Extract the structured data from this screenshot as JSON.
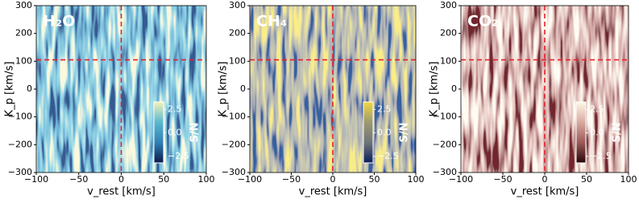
{
  "chart_data": [
    {
      "type": "heatmap",
      "title": "H₂O",
      "xlabel": "v_rest [km/s]",
      "ylabel": "K_p [km/s]",
      "xlim": [
        -100,
        100
      ],
      "xticks": [
        {
          "value": -100,
          "label": "−100"
        },
        {
          "value": -50,
          "label": "−50"
        },
        0,
        50,
        100
      ],
      "ylim": [
        -300,
        300
      ],
      "yticks": [
        {
          "value": -300,
          "label": "−300"
        },
        {
          "value": -200,
          "label": "−200"
        },
        {
          "value": -100,
          "label": "−100"
        },
        0,
        100,
        200,
        300
      ],
      "markers": {
        "x": 0,
        "y": 105,
        "color": "#e8202a"
      },
      "colormap": [
        "#0a1a4a",
        "#2f7fb5",
        "#5ab8cf",
        "#f4f2b8"
      ],
      "colorbar": {
        "label": "S/N",
        "lim": [
          -3.2,
          3.3
        ],
        "ticks": [
          {
            "value": 2.5,
            "label": "2.5"
          },
          {
            "value": 0,
            "label": "0.0"
          },
          {
            "value": -2.5,
            "label": "−2.5"
          }
        ]
      }
    },
    {
      "type": "heatmap",
      "title": "CH₄",
      "xlabel": "v_rest [km/s]",
      "ylabel": "K_p [km/s]",
      "xlim": [
        -100,
        100
      ],
      "xticks": [
        {
          "value": -100,
          "label": "−100"
        },
        {
          "value": -50,
          "label": "−50"
        },
        0,
        50,
        100
      ],
      "ylim": [
        -300,
        300
      ],
      "yticks": [
        {
          "value": -300,
          "label": "−300"
        },
        {
          "value": -200,
          "label": "−200"
        },
        {
          "value": -100,
          "label": "−100"
        },
        0,
        100,
        200,
        300
      ],
      "markers": {
        "x": 0,
        "y": 105,
        "color": "#e8202a"
      },
      "colormap": [
        "#0a1e5a",
        "#6f7478",
        "#9c9a70",
        "#f2d640"
      ],
      "colorbar": {
        "label": "S/N",
        "lim": [
          -3.2,
          3.3
        ],
        "ticks": [
          {
            "value": 2.5,
            "label": "2.5"
          },
          {
            "value": 0,
            "label": "0.0"
          },
          {
            "value": -2.5,
            "label": "−2.5"
          }
        ]
      }
    },
    {
      "type": "heatmap",
      "title": "CO₂",
      "xlabel": "v_rest [km/s]",
      "ylabel": "K_p [km/s]",
      "xlim": [
        -100,
        100
      ],
      "xticks": [
        {
          "value": -100,
          "label": "−100"
        },
        {
          "value": -50,
          "label": "−50"
        },
        0,
        50,
        100
      ],
      "ylim": [
        -300,
        300
      ],
      "yticks": [
        {
          "value": -300,
          "label": "−300"
        },
        {
          "value": -200,
          "label": "−200"
        },
        {
          "value": -100,
          "label": "−100"
        },
        0,
        100,
        200,
        300
      ],
      "markers": {
        "x": 0,
        "y": 105,
        "color": "#e8202a"
      },
      "colormap": [
        "#2a0508",
        "#9c5a58",
        "#d9aaa0",
        "#fff8e6"
      ],
      "colorbar": {
        "label": "S/N",
        "lim": [
          -3.2,
          3.3
        ],
        "ticks": [
          {
            "value": 2.5,
            "label": "2.5"
          },
          {
            "value": 0,
            "label": "0.0"
          },
          {
            "value": -2.5,
            "label": "−2.5"
          }
        ]
      }
    }
  ]
}
